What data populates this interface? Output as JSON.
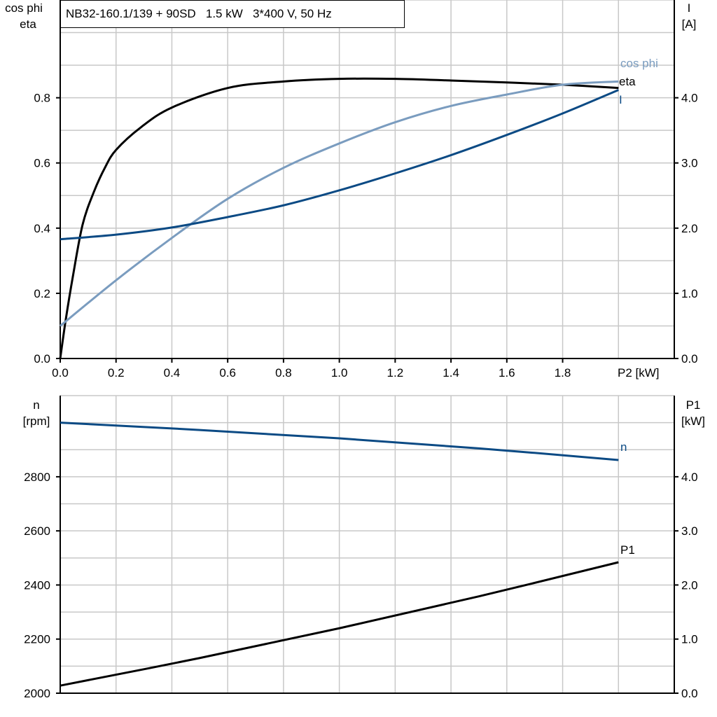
{
  "chart_data": [
    {
      "type": "line",
      "title": "NB32-160.1/139 + 90SD   1.5 kW   3*400 V, 50 Hz",
      "xlabel": "P2 [kW]",
      "ylabel_left": [
        "cos phi",
        "eta"
      ],
      "ylabel_right": [
        "I",
        "[A]"
      ],
      "xlim": [
        0,
        2.2
      ],
      "ylim_left": [
        0,
        1.1
      ],
      "ylim_right": [
        0,
        5.5
      ],
      "x_ticks": [
        "0.0",
        "0.2",
        "0.4",
        "0.6",
        "0.8",
        "1.0",
        "1.2",
        "1.4",
        "1.6",
        "1.8"
      ],
      "y_ticks_left": [
        "0.0",
        "0.2",
        "0.4",
        "0.6",
        "0.8"
      ],
      "y_ticks_right": [
        "0.0",
        "1.0",
        "2.0",
        "3.0",
        "4.0"
      ],
      "grid": true,
      "series": [
        {
          "name": "eta",
          "axis": "left",
          "color": "#000000",
          "x": [
            0,
            0.02,
            0.045,
            0.08,
            0.12,
            0.16,
            0.2,
            0.29,
            0.4,
            0.6,
            0.8,
            1.0,
            1.2,
            1.4,
            1.6,
            1.8,
            2.0
          ],
          "y": [
            0,
            0.12,
            0.25,
            0.41,
            0.51,
            0.585,
            0.64,
            0.71,
            0.77,
            0.83,
            0.85,
            0.858,
            0.858,
            0.853,
            0.847,
            0.84,
            0.83
          ]
        },
        {
          "name": "cos phi",
          "axis": "left",
          "color": "#7a9cbf",
          "x": [
            0,
            0.2,
            0.4,
            0.6,
            0.8,
            1.0,
            1.2,
            1.4,
            1.6,
            1.8,
            2.0
          ],
          "y": [
            0.1,
            0.24,
            0.37,
            0.49,
            0.585,
            0.66,
            0.725,
            0.775,
            0.81,
            0.84,
            0.85
          ]
        },
        {
          "name": "I",
          "axis": "right",
          "color": "#0b4a84",
          "x": [
            0,
            0.2,
            0.4,
            0.6,
            0.8,
            1.0,
            1.2,
            1.4,
            1.6,
            1.8,
            2.0
          ],
          "y": [
            1.83,
            1.9,
            2.01,
            2.17,
            2.35,
            2.58,
            2.84,
            3.12,
            3.43,
            3.76,
            4.12
          ]
        }
      ]
    },
    {
      "type": "line",
      "ylabel_left": [
        "n",
        "[rpm]"
      ],
      "ylabel_right": [
        "P1",
        "[kW]"
      ],
      "xlim": [
        0,
        2.2
      ],
      "ylim_left": [
        2000,
        3100
      ],
      "ylim_right": [
        0,
        5.5
      ],
      "y_ticks_left": [
        "2000",
        "2200",
        "2400",
        "2600",
        "2800"
      ],
      "y_ticks_right": [
        "0.0",
        "1.0",
        "2.0",
        "3.0",
        "4.0"
      ],
      "grid": true,
      "series": [
        {
          "name": "n",
          "axis": "left",
          "color": "#0b4a84",
          "x": [
            0,
            0.5,
            1.0,
            1.5,
            2.0
          ],
          "y": [
            3000,
            2973,
            2942,
            2905,
            2862
          ]
        },
        {
          "name": "P1",
          "axis": "right",
          "color": "#000000",
          "x": [
            0,
            0.5,
            1.0,
            1.5,
            2.0
          ],
          "y": [
            0.14,
            0.65,
            1.2,
            1.79,
            2.42
          ]
        }
      ]
    }
  ]
}
